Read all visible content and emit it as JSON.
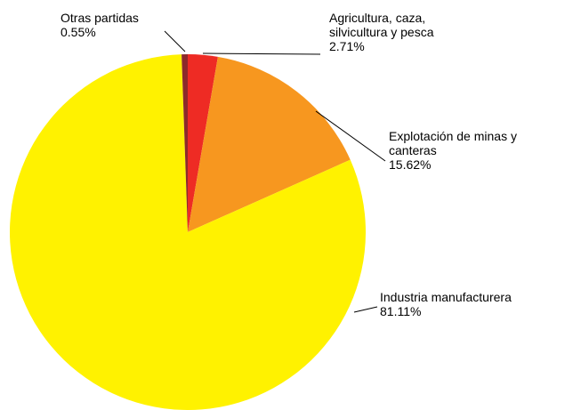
{
  "chart_data": {
    "type": "pie",
    "categories": [
      "Agricultura, caza, silvicultura y pesca",
      "Explotación de minas y canteras",
      "Industria manufacturera",
      "Otras partidas"
    ],
    "values": [
      2.71,
      15.62,
      81.11,
      0.55
    ],
    "value_labels": [
      "2.71%",
      "15.62%",
      "81.11%",
      "0.55%"
    ],
    "colors": [
      "#ee2b24",
      "#f7971f",
      "#fff200",
      "#8c2b2b"
    ]
  }
}
